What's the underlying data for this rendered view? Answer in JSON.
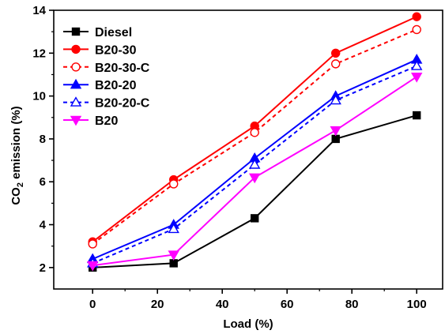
{
  "chart_data": {
    "type": "line",
    "xlabel": "Load (%)",
    "ylabel_main": "CO",
    "ylabel_sub": "2",
    "ylabel_rest": " emission (%)",
    "x": [
      0,
      25,
      50,
      75,
      100
    ],
    "xlim": [
      -12,
      108
    ],
    "ylim": [
      1,
      14
    ],
    "xticks": [
      0,
      20,
      40,
      60,
      80,
      100
    ],
    "yticks": [
      2,
      4,
      6,
      8,
      10,
      12,
      14
    ],
    "grid": false,
    "legend_position": "top-left",
    "series": [
      {
        "name": "Diesel",
        "values": [
          2.0,
          2.2,
          4.3,
          8.0,
          9.1
        ],
        "color": "#000000",
        "marker": "square",
        "filled": true,
        "dashed": false
      },
      {
        "name": "B20-30",
        "values": [
          3.2,
          6.1,
          8.6,
          12.0,
          13.7
        ],
        "color": "#ff0000",
        "marker": "circle",
        "filled": true,
        "dashed": false
      },
      {
        "name": "B20-30-C",
        "values": [
          3.1,
          5.9,
          8.3,
          11.5,
          13.1
        ],
        "color": "#ff0000",
        "marker": "circle",
        "filled": false,
        "dashed": true
      },
      {
        "name": "B20-20",
        "values": [
          2.4,
          4.0,
          7.1,
          10.0,
          11.7
        ],
        "color": "#0000ff",
        "marker": "triangle-up",
        "filled": true,
        "dashed": false
      },
      {
        "name": "B20-20-C",
        "values": [
          2.2,
          3.8,
          6.8,
          9.8,
          11.4
        ],
        "color": "#0000ff",
        "marker": "triangle-up",
        "filled": false,
        "dashed": true
      },
      {
        "name": "B20",
        "values": [
          2.1,
          2.6,
          6.2,
          8.4,
          10.9
        ],
        "color": "#ff00ff",
        "marker": "triangle-down",
        "filled": true,
        "dashed": false
      }
    ]
  }
}
